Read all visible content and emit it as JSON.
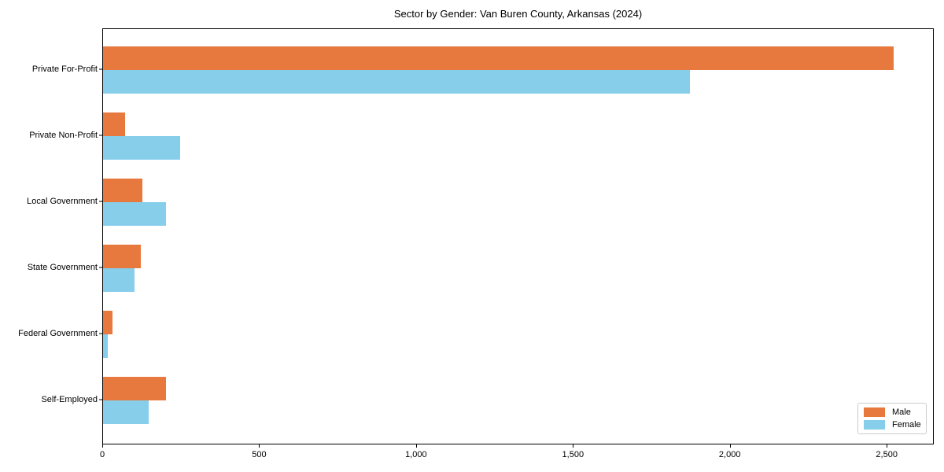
{
  "figure": {
    "background": "#ffffff"
  },
  "chart_data": {
    "type": "bar",
    "orientation": "horizontal",
    "title": "Sector by Gender: Van Buren County, Arkansas (2024)",
    "categories": [
      "Private For-Profit",
      "Private Non-Profit",
      "Local Government",
      "State Government",
      "Federal Government",
      "Self-Employed"
    ],
    "series": [
      {
        "name": "Male",
        "color": "#E8793E",
        "values": [
          2520,
          70,
          125,
          120,
          30,
          200
        ]
      },
      {
        "name": "Female",
        "color": "#87CEEB",
        "values": [
          1870,
          245,
          200,
          100,
          15,
          145
        ]
      }
    ],
    "xlabel": "",
    "ylabel": "",
    "xlim": [
      0,
      2650
    ],
    "xticks": {
      "values": [
        0,
        500,
        1000,
        1500,
        2000,
        2500
      ],
      "labels": [
        "0",
        "500",
        "1,000",
        "1,500",
        "2,000",
        "2,500"
      ]
    },
    "grid": false,
    "legend": {
      "position": "lower right"
    }
  }
}
